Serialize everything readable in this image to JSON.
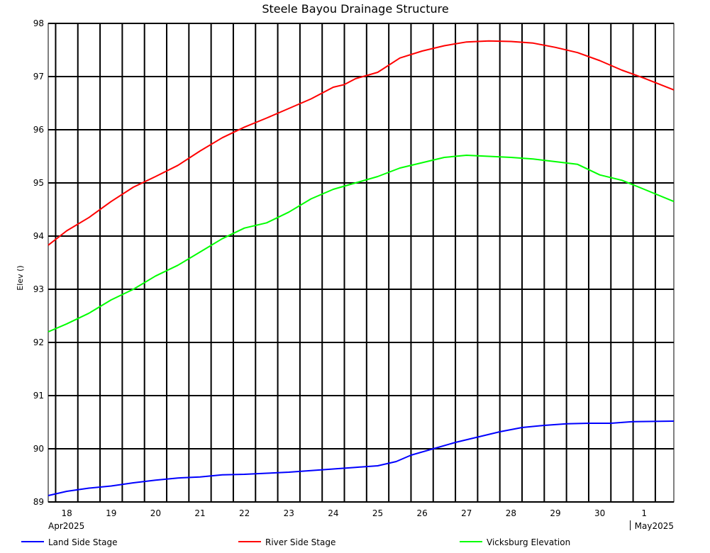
{
  "chart_data": {
    "type": "line",
    "title": "Steele Bayou Drainage Structure",
    "ylabel": "Elev ()",
    "xlabel": "",
    "ylim": [
      89,
      98
    ],
    "y_ticks": [
      89,
      90,
      91,
      92,
      93,
      94,
      95,
      96,
      97,
      98
    ],
    "x_range_days": [
      "2025-04-17T20:00",
      "2025-05-01T22:00"
    ],
    "x_day_ticks": [
      {
        "date": "2025-04-18",
        "label": "18"
      },
      {
        "date": "2025-04-19",
        "label": "19"
      },
      {
        "date": "2025-04-20",
        "label": "20"
      },
      {
        "date": "2025-04-21",
        "label": "21"
      },
      {
        "date": "2025-04-22",
        "label": "22"
      },
      {
        "date": "2025-04-23",
        "label": "23"
      },
      {
        "date": "2025-04-24",
        "label": "24"
      },
      {
        "date": "2025-04-25",
        "label": "25"
      },
      {
        "date": "2025-04-26",
        "label": "26"
      },
      {
        "date": "2025-04-27",
        "label": "27"
      },
      {
        "date": "2025-04-28",
        "label": "28"
      },
      {
        "date": "2025-04-29",
        "label": "29"
      },
      {
        "date": "2025-04-30",
        "label": "30"
      },
      {
        "date": "2025-05-01",
        "label": "1"
      }
    ],
    "x_month_labels": [
      {
        "date": "2025-04-18",
        "label": "Apr2025"
      },
      {
        "date": "2025-05-01",
        "label": "May2025"
      }
    ],
    "grid": true,
    "legend_position": "bottom",
    "series": [
      {
        "name": "Land Side Stage",
        "color": "#0000ff",
        "points": [
          [
            "2025-04-17T20:00",
            89.12
          ],
          [
            "2025-04-18T06:00",
            89.2
          ],
          [
            "2025-04-18T18:00",
            89.26
          ],
          [
            "2025-04-19T06:00",
            89.3
          ],
          [
            "2025-04-19T18:00",
            89.36
          ],
          [
            "2025-04-20T06:00",
            89.41
          ],
          [
            "2025-04-20T18:00",
            89.45
          ],
          [
            "2025-04-21T06:00",
            89.47
          ],
          [
            "2025-04-21T18:00",
            89.51
          ],
          [
            "2025-04-22T06:00",
            89.52
          ],
          [
            "2025-04-22T18:00",
            89.54
          ],
          [
            "2025-04-23T06:00",
            89.56
          ],
          [
            "2025-04-23T18:00",
            89.59
          ],
          [
            "2025-04-24T06:00",
            89.62
          ],
          [
            "2025-04-24T18:00",
            89.65
          ],
          [
            "2025-04-25T06:00",
            89.68
          ],
          [
            "2025-04-25T16:00",
            89.76
          ],
          [
            "2025-04-26T00:00",
            89.88
          ],
          [
            "2025-04-26T12:00",
            90.0
          ],
          [
            "2025-04-27T00:00",
            90.12
          ],
          [
            "2025-04-27T12:00",
            90.22
          ],
          [
            "2025-04-28T00:00",
            90.32
          ],
          [
            "2025-04-28T12:00",
            90.4
          ],
          [
            "2025-04-29T00:00",
            90.44
          ],
          [
            "2025-04-29T12:00",
            90.47
          ],
          [
            "2025-04-30T00:00",
            90.48
          ],
          [
            "2025-04-30T12:00",
            90.48
          ],
          [
            "2025-05-01T00:00",
            90.51
          ],
          [
            "2025-05-01T22:00",
            90.52
          ]
        ]
      },
      {
        "name": "River Side Stage",
        "color": "#ff0000",
        "points": [
          [
            "2025-04-17T20:00",
            93.83
          ],
          [
            "2025-04-18T06:00",
            94.1
          ],
          [
            "2025-04-18T18:00",
            94.35
          ],
          [
            "2025-04-19T06:00",
            94.65
          ],
          [
            "2025-04-19T18:00",
            94.92
          ],
          [
            "2025-04-20T06:00",
            95.12
          ],
          [
            "2025-04-20T18:00",
            95.33
          ],
          [
            "2025-04-21T06:00",
            95.6
          ],
          [
            "2025-04-21T18:00",
            95.85
          ],
          [
            "2025-04-22T06:00",
            96.05
          ],
          [
            "2025-04-22T18:00",
            96.22
          ],
          [
            "2025-04-23T06:00",
            96.4
          ],
          [
            "2025-04-23T18:00",
            96.58
          ],
          [
            "2025-04-24T06:00",
            96.8
          ],
          [
            "2025-04-24T12:00",
            96.85
          ],
          [
            "2025-04-24T18:00",
            96.96
          ],
          [
            "2025-04-25T06:00",
            97.08
          ],
          [
            "2025-04-25T18:00",
            97.35
          ],
          [
            "2025-04-26T06:00",
            97.48
          ],
          [
            "2025-04-26T18:00",
            97.58
          ],
          [
            "2025-04-27T06:00",
            97.65
          ],
          [
            "2025-04-27T18:00",
            97.67
          ],
          [
            "2025-04-28T06:00",
            97.66
          ],
          [
            "2025-04-28T18:00",
            97.63
          ],
          [
            "2025-04-29T06:00",
            97.55
          ],
          [
            "2025-04-29T18:00",
            97.45
          ],
          [
            "2025-04-30T06:00",
            97.3
          ],
          [
            "2025-04-30T18:00",
            97.12
          ],
          [
            "2025-05-01T06:00",
            96.97
          ],
          [
            "2025-05-01T22:00",
            96.75
          ]
        ]
      },
      {
        "name": "Vicksburg Elevation",
        "color": "#00ff00",
        "points": [
          [
            "2025-04-17T20:00",
            92.2
          ],
          [
            "2025-04-18T06:00",
            92.35
          ],
          [
            "2025-04-18T18:00",
            92.55
          ],
          [
            "2025-04-19T06:00",
            92.8
          ],
          [
            "2025-04-19T18:00",
            93.0
          ],
          [
            "2025-04-20T06:00",
            93.25
          ],
          [
            "2025-04-20T18:00",
            93.45
          ],
          [
            "2025-04-21T06:00",
            93.7
          ],
          [
            "2025-04-21T18:00",
            93.95
          ],
          [
            "2025-04-22T06:00",
            94.15
          ],
          [
            "2025-04-22T18:00",
            94.25
          ],
          [
            "2025-04-23T06:00",
            94.45
          ],
          [
            "2025-04-23T18:00",
            94.7
          ],
          [
            "2025-04-24T06:00",
            94.88
          ],
          [
            "2025-04-24T18:00",
            95.0
          ],
          [
            "2025-04-25T06:00",
            95.12
          ],
          [
            "2025-04-25T18:00",
            95.28
          ],
          [
            "2025-04-26T06:00",
            95.38
          ],
          [
            "2025-04-26T18:00",
            95.48
          ],
          [
            "2025-04-27T06:00",
            95.52
          ],
          [
            "2025-04-27T18:00",
            95.5
          ],
          [
            "2025-04-28T06:00",
            95.48
          ],
          [
            "2025-04-28T18:00",
            95.45
          ],
          [
            "2025-04-29T06:00",
            95.4
          ],
          [
            "2025-04-29T18:00",
            95.35
          ],
          [
            "2025-04-30T06:00",
            95.15
          ],
          [
            "2025-04-30T18:00",
            95.05
          ],
          [
            "2025-05-01T06:00",
            94.88
          ],
          [
            "2025-05-01T22:00",
            94.65
          ]
        ]
      }
    ]
  }
}
